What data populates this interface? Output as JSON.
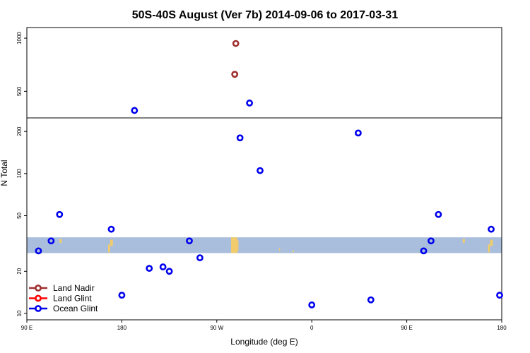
{
  "chart_data": {
    "type": "scatter",
    "title": "50S-40S August (Ver 7b)   2014-09-06 to 2017-03-31",
    "xlabel": "Longitude (deg E)",
    "ylabel": "N Total",
    "x_ticks": [
      {
        "value": 90,
        "label": "90 E"
      },
      {
        "value": 180,
        "label": "180"
      },
      {
        "value": 270,
        "label": "90 W"
      },
      {
        "value": 360,
        "label": "0"
      },
      {
        "value": 450,
        "label": "90 E"
      },
      {
        "value": 540,
        "label": "180"
      }
    ],
    "xlim": [
      90,
      540
    ],
    "upper_panel": {
      "ylim": [
        250,
        1100
      ],
      "y_ticks": [
        {
          "value": 500,
          "label": "500"
        },
        {
          "value": 1000,
          "label": "1000"
        }
      ]
    },
    "lower_panel": {
      "scale": "log",
      "ylim": [
        9,
        250
      ],
      "y_ticks": [
        {
          "value": 10,
          "label": "10"
        },
        {
          "value": 20,
          "label": "20"
        },
        {
          "value": 50,
          "label": "50"
        },
        {
          "value": 100,
          "label": "100"
        },
        {
          "value": 200,
          "label": "200"
        }
      ]
    },
    "latitude_band": {
      "ymin": 27,
      "ymax": 35,
      "color": "#a8bedc"
    },
    "land_color": "#f2cc6c",
    "series": [
      {
        "name": "Land Nadir",
        "color": "#9e2f2f",
        "points": [
          {
            "x": 288,
            "y": 950
          },
          {
            "x": 287,
            "y": 660
          }
        ]
      },
      {
        "name": "Land Glint",
        "color": "#ff0000",
        "points": []
      },
      {
        "name": "Ocean Glint",
        "color": "#0000ee",
        "points": [
          {
            "x": 101,
            "y": 28
          },
          {
            "x": 113,
            "y": 33
          },
          {
            "x": 121,
            "y": 51
          },
          {
            "x": 170,
            "y": 40
          },
          {
            "x": 180,
            "y": 13.5
          },
          {
            "x": 192,
            "y": 320
          },
          {
            "x": 206,
            "y": 21
          },
          {
            "x": 219,
            "y": 21.5
          },
          {
            "x": 225,
            "y": 20
          },
          {
            "x": 244,
            "y": 33
          },
          {
            "x": 254,
            "y": 25
          },
          {
            "x": 292,
            "y": 180
          },
          {
            "x": 301,
            "y": 390
          },
          {
            "x": 311,
            "y": 105
          },
          {
            "x": 360,
            "y": 11.5
          },
          {
            "x": 404,
            "y": 195
          },
          {
            "x": 416,
            "y": 12.5
          },
          {
            "x": 466,
            "y": 28
          },
          {
            "x": 473,
            "y": 33
          },
          {
            "x": 480,
            "y": 51
          },
          {
            "x": 530,
            "y": 40
          },
          {
            "x": 538,
            "y": 13.5
          }
        ]
      }
    ],
    "legend": {
      "position": "bottom-left",
      "entries": [
        "Land Nadir",
        "Land Glint",
        "Ocean Glint"
      ]
    },
    "grid": false
  }
}
